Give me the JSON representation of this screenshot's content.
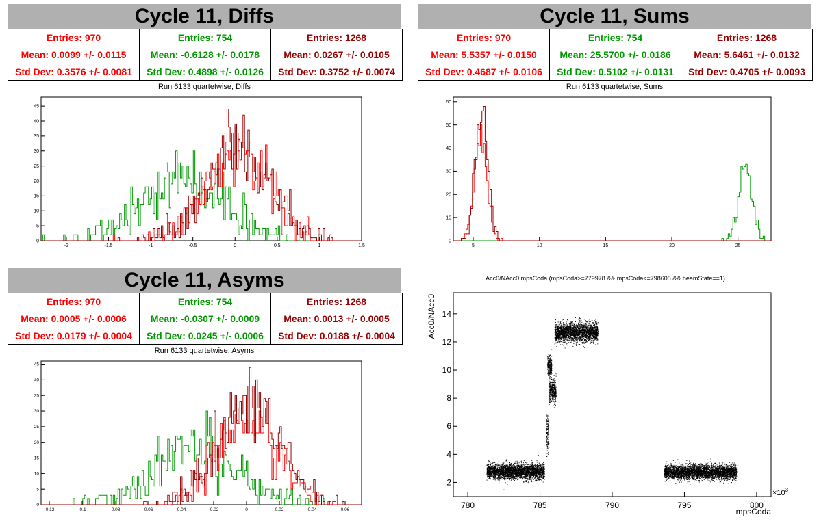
{
  "colors": {
    "red": "#ff0000",
    "green": "#009900",
    "darkred": "#990000",
    "black": "#000000",
    "titlebar": "#b0b0b0"
  },
  "panels": [
    {
      "title": "Cycle 11, Diffs",
      "subtitle": "Run 6133 quartetwise, Diffs",
      "stats": [
        {
          "entries": "Entries: 970",
          "mean": "Mean: 0.0099 +/- 0.0115",
          "std": "Std Dev: 0.3576 +/- 0.0081",
          "color": "#ff0000"
        },
        {
          "entries": "Entries: 754",
          "mean": "Mean: -0.6128 +/- 0.0178",
          "std": "Std Dev: 0.4898 +/- 0.0126",
          "color": "#009900"
        },
        {
          "entries": "Entries: 1268",
          "mean": "Mean: 0.0267 +/- 0.0105",
          "std": "Std Dev: 0.3752 +/- 0.0074",
          "color": "#990000"
        }
      ]
    },
    {
      "title": "Cycle 11, Sums",
      "subtitle": "Run 6133 quartetwise, Sums",
      "stats": [
        {
          "entries": "Entries: 970",
          "mean": "Mean: 5.5357 +/- 0.0150",
          "std": "Std Dev: 0.4687 +/- 0.0106",
          "color": "#ff0000"
        },
        {
          "entries": "Entries: 754",
          "mean": "Mean: 25.5700 +/- 0.0186",
          "std": "Std Dev: 0.5102 +/- 0.0131",
          "color": "#009900"
        },
        {
          "entries": "Entries: 1268",
          "mean": "Mean: 5.6461 +/- 0.0132",
          "std": "Std Dev: 0.4705 +/- 0.0093",
          "color": "#990000"
        }
      ]
    },
    {
      "title": "Cycle 11, Asyms",
      "subtitle": "Run 6133 quartetwise, Asyms",
      "stats": [
        {
          "entries": "Entries: 970",
          "mean": "Mean: 0.0005 +/- 0.0006",
          "std": "Std Dev: 0.0179 +/- 0.0004",
          "color": "#ff0000"
        },
        {
          "entries": "Entries: 754",
          "mean": "Mean: -0.0307 +/- 0.0009",
          "std": "Std Dev: 0.0245 +/- 0.0006",
          "color": "#009900"
        },
        {
          "entries": "Entries: 1268",
          "mean": "Mean: 0.0013 +/- 0.0005",
          "std": "Std Dev: 0.0188 +/- 0.0004",
          "color": "#990000"
        }
      ]
    }
  ],
  "chart_data": [
    {
      "type": "histogram",
      "name": "diffs",
      "xlim": [
        -2.3,
        1.5
      ],
      "ylim": [
        0,
        48
      ],
      "xticks": [
        "-2",
        "-1.5",
        "-1",
        "-0.5",
        "0",
        "0.5",
        "1",
        "1.5"
      ],
      "yticks": [
        "0",
        "5",
        "10",
        "15",
        "20",
        "25",
        "30",
        "35",
        "40",
        "45"
      ],
      "series": [
        {
          "color": "#009900",
          "mean": -0.6128,
          "std": 0.4898,
          "entries": 754
        },
        {
          "color": "#ff0000",
          "mean": 0.0099,
          "std": 0.3576,
          "entries": 970
        },
        {
          "color": "#990000",
          "mean": 0.0267,
          "std": 0.3752,
          "entries": 1268
        }
      ]
    },
    {
      "type": "histogram",
      "name": "sums",
      "xlim": [
        3.5,
        27.5
      ],
      "ylim": [
        0,
        62
      ],
      "xticks": [
        "5",
        "10",
        "15",
        "20",
        "25"
      ],
      "yticks": [
        "0",
        "10",
        "20",
        "30",
        "40",
        "50",
        "60"
      ],
      "series": [
        {
          "color": "#009900",
          "mean": 25.57,
          "std": 0.5102,
          "entries": 754
        },
        {
          "color": "#ff0000",
          "mean": 5.5357,
          "std": 0.4687,
          "entries": 970
        },
        {
          "color": "#990000",
          "mean": 5.6461,
          "std": 0.4705,
          "entries": 1268
        }
      ]
    },
    {
      "type": "histogram",
      "name": "asyms",
      "xlim": [
        -0.125,
        0.07
      ],
      "ylim": [
        0,
        46
      ],
      "xticks": [
        "-0.12",
        "-0.1",
        "-0.08",
        "-0.06",
        "-0.04",
        "-0.02",
        "0",
        "0.02",
        "0.04",
        "0.06"
      ],
      "yticks": [
        "0",
        "5",
        "10",
        "15",
        "20",
        "25",
        "30",
        "35",
        "40",
        "45"
      ],
      "series": [
        {
          "color": "#009900",
          "mean": -0.0307,
          "std": 0.0245,
          "entries": 754
        },
        {
          "color": "#ff0000",
          "mean": 0.0005,
          "std": 0.0179,
          "entries": 970
        },
        {
          "color": "#990000",
          "mean": 0.0013,
          "std": 0.0188,
          "entries": 1268
        }
      ]
    },
    {
      "type": "scatter",
      "name": "acc-vs-mpscoda",
      "title": "Acc0/NAcc0:mpsCoda (mpsCoda>=779978 && mpsCoda<=798605 && beamState==1)",
      "xlabel": "mpsCoda",
      "ylabel": "Acc0/NAcc0",
      "xexponent": "×10",
      "xexponent_power": "3",
      "xlim": [
        779,
        801
      ],
      "ylim": [
        1,
        15.5
      ],
      "xticks": [
        "780",
        "785",
        "790",
        "795",
        "800"
      ],
      "yticks": [
        "2",
        "4",
        "6",
        "8",
        "10",
        "12",
        "14"
      ],
      "clusters": [
        {
          "x": [
            781.3,
            785.3
          ],
          "y_center": 2.8,
          "y_spread": 0.45
        },
        {
          "x": [
            785.6,
            786.1
          ],
          "y_center": 8.6,
          "y_spread": 0.7
        },
        {
          "x": [
            785.5,
            785.8
          ],
          "y_center": 10.3,
          "y_spread": 0.6
        },
        {
          "x": [
            785.4,
            785.6
          ],
          "y_center": 5.5,
          "y_spread": 1.2
        },
        {
          "x": [
            786.0,
            789.0
          ],
          "y_center": 12.7,
          "y_spread": 0.55
        },
        {
          "x": [
            793.6,
            798.6
          ],
          "y_center": 2.75,
          "y_spread": 0.42
        }
      ]
    }
  ]
}
